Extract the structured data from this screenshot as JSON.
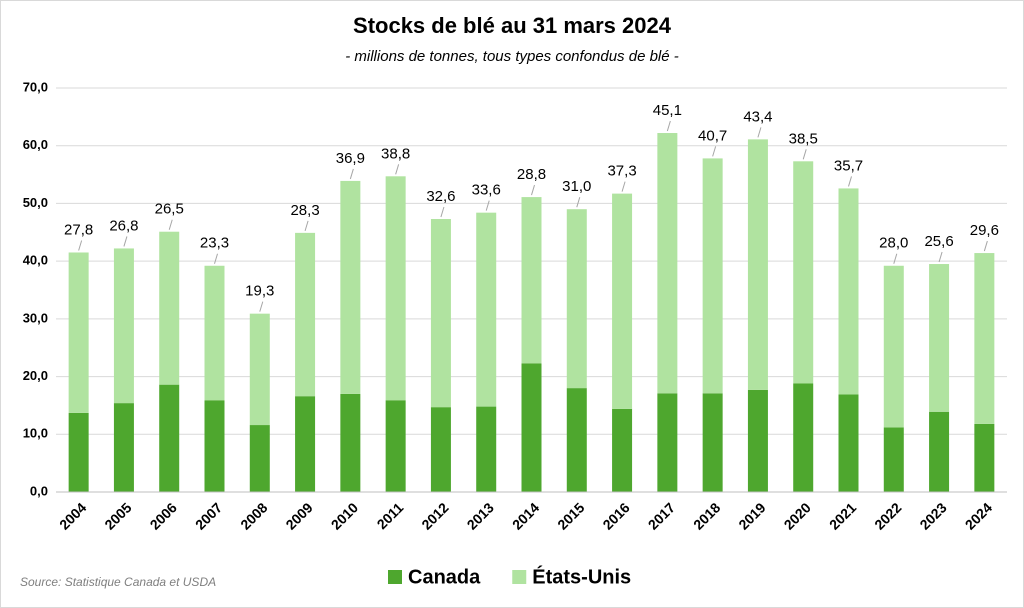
{
  "chart_data": {
    "type": "stacked_bar",
    "title": "Stocks de blé au 31 mars 2024",
    "subtitle": "- millions de tonnes,  tous types confondus de blé -",
    "source": "Source: Statistique Canada et USDA",
    "categories": [
      "2004",
      "2005",
      "2006",
      "2007",
      "2008",
      "2009",
      "2010",
      "2011",
      "2012",
      "2013",
      "2014",
      "2015",
      "2016",
      "2017",
      "2018",
      "2019",
      "2020",
      "2021",
      "2022",
      "2023",
      "2024"
    ],
    "series": [
      {
        "name": "Canada",
        "color": "#4ea72e",
        "values": [
          13.7,
          15.4,
          18.6,
          15.9,
          11.6,
          16.6,
          17.0,
          15.9,
          14.7,
          14.8,
          22.3,
          18.0,
          14.4,
          17.1,
          17.1,
          17.7,
          18.8,
          16.9,
          11.2,
          13.9,
          11.8
        ]
      },
      {
        "name": "États-Unis",
        "color": "#b0e3a0",
        "values": [
          27.8,
          26.8,
          26.5,
          23.3,
          19.3,
          28.3,
          36.9,
          38.8,
          32.6,
          33.6,
          28.8,
          31.0,
          37.3,
          45.1,
          40.7,
          43.4,
          38.5,
          35.7,
          28.0,
          25.6,
          29.6
        ],
        "value_labels": [
          "27,8",
          "26,8",
          "26,5",
          "23,3",
          "19,3",
          "28,3",
          "36,9",
          "38,8",
          "32,6",
          "33,6",
          "28,8",
          "31,0",
          "37,3",
          "45,1",
          "40,7",
          "43,4",
          "38,5",
          "35,7",
          "28,0",
          "25,6",
          "29,6"
        ]
      }
    ],
    "ylim": [
      0,
      70
    ],
    "yticks": [
      {
        "value": 0,
        "label": "0,0"
      },
      {
        "value": 10,
        "label": "10,0"
      },
      {
        "value": 20,
        "label": "20,0"
      },
      {
        "value": 30,
        "label": "30,0"
      },
      {
        "value": 40,
        "label": "40,0"
      },
      {
        "value": 50,
        "label": "50,0"
      },
      {
        "value": 60,
        "label": "60,0"
      },
      {
        "value": 70,
        "label": "70,0"
      }
    ],
    "grid": true,
    "legend": "bottom"
  }
}
